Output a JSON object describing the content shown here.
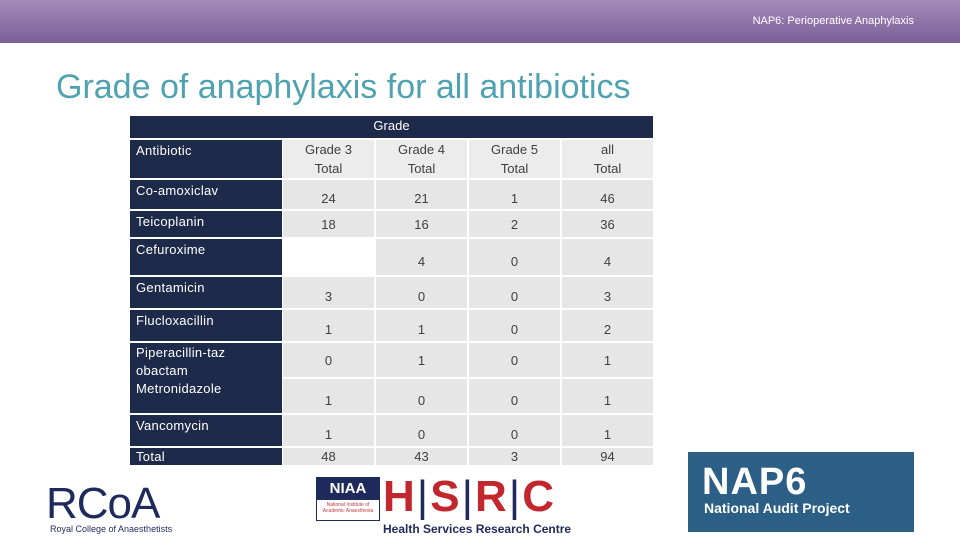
{
  "header": {
    "title": "NAP6: Perioperative Anaphylaxis"
  },
  "slide": {
    "title": "Grade of anaphylaxis for all antibiotics"
  },
  "table": {
    "group_header": "Grade",
    "columns": [
      {
        "label": "Antibiotic"
      },
      {
        "line1": "Grade 3",
        "line2": "Total"
      },
      {
        "line1": "Grade 4",
        "line2": "Total"
      },
      {
        "line1": "Grade 5",
        "line2": "Total"
      },
      {
        "line1": "all",
        "line2": "Total"
      }
    ],
    "rows": [
      {
        "label": "Co-amoxiclav",
        "values": [
          "24",
          "21",
          "1",
          "46"
        ]
      },
      {
        "label": "Teicoplanin",
        "values": [
          "18",
          "16",
          "2",
          "36"
        ]
      },
      {
        "label": "Cefuroxime",
        "values": [
          "",
          "4",
          "0",
          "4"
        ]
      },
      {
        "label": "Gentamicin",
        "values": [
          "3",
          "0",
          "0",
          "3"
        ]
      },
      {
        "label": "Flucloxacillin",
        "values": [
          "1",
          "1",
          "0",
          "2"
        ]
      },
      {
        "label": "Piperacillin-tazobactam",
        "values": [
          "0",
          "1",
          "0",
          "1"
        ]
      },
      {
        "label": "Metronidazole",
        "values": [
          "1",
          "0",
          "0",
          "1"
        ]
      },
      {
        "label": "Vancomycin",
        "values": [
          "1",
          "0",
          "0",
          "1"
        ]
      },
      {
        "label": "Total",
        "values": [
          "48",
          "43",
          "3",
          "94"
        ]
      }
    ]
  },
  "logos": {
    "rcoa": {
      "mark": "RCoA",
      "subtitle": "Royal College of Anaesthetists"
    },
    "niaa": {
      "mark": "NIAA",
      "subtitle": "National Institute of Academic Anaesthesia"
    },
    "hsrc": {
      "letters": [
        "H",
        "S",
        "R",
        "C"
      ],
      "subtitle": "Health Services Research Centre"
    },
    "nap6": {
      "mark": "NAP6",
      "subtitle": "National Audit Project"
    }
  },
  "colors": {
    "header_bar": "#8f72a8",
    "title": "#4fa3b1",
    "table_dark": "#1e2a4a",
    "table_cell": "#e6e6e6",
    "nap6_bg": "#2b5f86",
    "hsrc_red": "#c1272d"
  }
}
